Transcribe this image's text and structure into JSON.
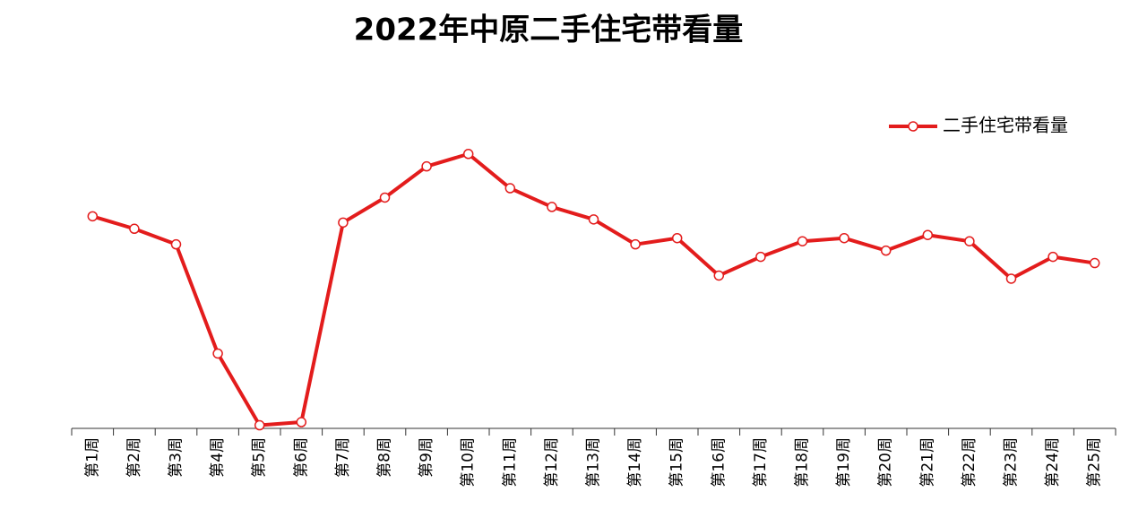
{
  "chart_data": {
    "type": "line",
    "title": "2022年中原二手住宅带看量",
    "categories": [
      "第1周",
      "第2周",
      "第3周",
      "第4周",
      "第5周",
      "第6周",
      "第7周",
      "第8周",
      "第9周",
      "第10周",
      "第11周",
      "第12周",
      "第13周",
      "第14周",
      "第15周",
      "第16周",
      "第17周",
      "第18周",
      "第19周",
      "第20周",
      "第21周",
      "第22周",
      "第23周",
      "第24周",
      "第25周"
    ],
    "series": [
      {
        "name": "二手住宅带看量",
        "color": "#e31c1c",
        "values": [
          68,
          64,
          59,
          24,
          1,
          2,
          66,
          74,
          84,
          88,
          77,
          71,
          67,
          59,
          61,
          49,
          55,
          60,
          61,
          57,
          62,
          60,
          48,
          55,
          53
        ]
      }
    ],
    "ylim": [
      0,
      100
    ],
    "legend": "upper right"
  }
}
